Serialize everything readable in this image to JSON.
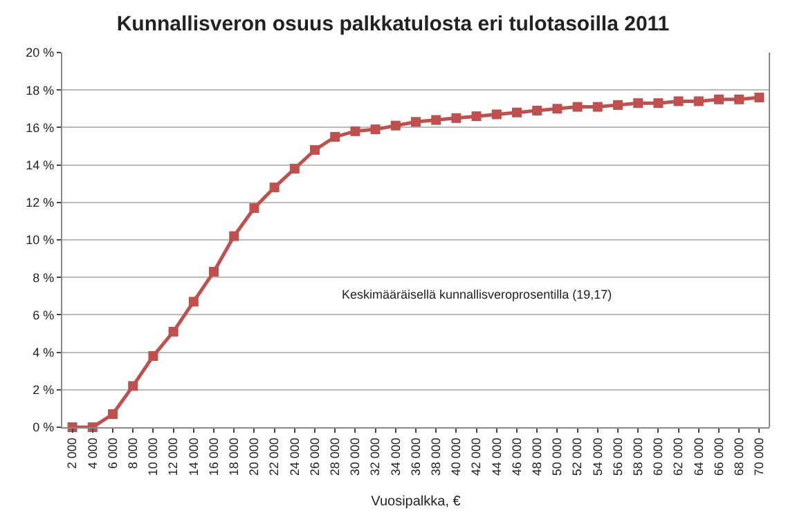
{
  "chart_data": {
    "type": "line",
    "title": "Kunnallisveron osuus palkkatulosta eri tulotasoilla 2011",
    "xlabel": "Vuosipalkka, €",
    "categories": [
      "2 000",
      "4 000",
      "6 000",
      "8 000",
      "10 000",
      "12 000",
      "14 000",
      "16 000",
      "18 000",
      "20 000",
      "22 000",
      "24 000",
      "26 000",
      "28 000",
      "30 000",
      "32 000",
      "34 000",
      "36 000",
      "38 000",
      "40 000",
      "42 000",
      "44 000",
      "46 000",
      "48 000",
      "50 000",
      "52 000",
      "54 000",
      "56 000",
      "58 000",
      "60 000",
      "62 000",
      "64 000",
      "66 000",
      "68 000",
      "70 000"
    ],
    "series": [
      {
        "color": "#c0504d",
        "values": [
          0,
          0,
          0.7,
          2.2,
          3.8,
          5.1,
          6.7,
          8.3,
          10.2,
          11.7,
          12.8,
          13.8,
          14.8,
          15.5,
          15.8,
          15.9,
          16.1,
          16.3,
          16.4,
          16.5,
          16.6,
          16.7,
          16.8,
          16.9,
          17.0,
          17.1,
          17.1,
          17.2,
          17.3,
          17.3,
          17.4,
          17.4,
          17.5,
          17.5,
          17.6
        ]
      }
    ],
    "ylim": [
      0,
      20
    ],
    "yticks": [
      {
        "value": 0,
        "label": "0 %"
      },
      {
        "value": 2,
        "label": "2 %"
      },
      {
        "value": 4,
        "label": "4 %"
      },
      {
        "value": 6,
        "label": "6 %"
      },
      {
        "value": 8,
        "label": "8 %"
      },
      {
        "value": 10,
        "label": "10 %"
      },
      {
        "value": 12,
        "label": "12 %"
      },
      {
        "value": 14,
        "label": "14 %"
      },
      {
        "value": 16,
        "label": "16 %"
      },
      {
        "value": 18,
        "label": "18 %"
      },
      {
        "value": 20,
        "label": "20 %"
      }
    ],
    "annotations": [
      "Keskimääräisellä kunnallisveroprosentilla (19,17)"
    ],
    "grid": "y",
    "legend": false,
    "marker": "square",
    "line_style": "solid"
  }
}
